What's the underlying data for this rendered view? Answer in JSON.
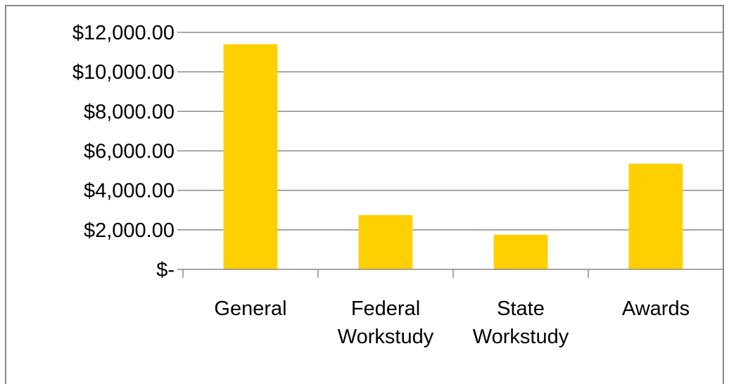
{
  "chart_data": {
    "type": "bar",
    "title": "",
    "xlabel": "",
    "ylabel": "",
    "categories": [
      [
        "General"
      ],
      [
        "Federal",
        "Workstudy"
      ],
      [
        "State",
        "Workstudy"
      ],
      [
        "Awards"
      ]
    ],
    "values": [
      11400,
      2750,
      1750,
      5350
    ],
    "ylim": [
      0,
      12000
    ],
    "y_ticks": [
      0,
      2000,
      4000,
      6000,
      8000,
      10000,
      12000
    ],
    "y_tick_labels": [
      "$-",
      "$2,000.00",
      "$4,000.00",
      "$6,000.00",
      "$8,000.00",
      "$10,000.00",
      "$12,000.00"
    ],
    "grid": true,
    "legend": "none",
    "colors": {
      "bar": "#FFD000",
      "grid": "#888888",
      "axis": "#888888",
      "border": "#888888"
    }
  }
}
